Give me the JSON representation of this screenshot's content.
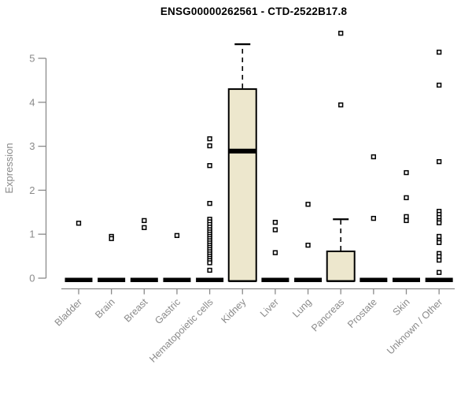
{
  "title": "ENSG00000262561 - CTD-2522B17.8",
  "colors": {
    "background": "#ffffff",
    "box_fill": "#ede7cd",
    "box_stroke": "#000000",
    "median": "#000000",
    "whisker": "#000000",
    "outlier_stroke": "#000000",
    "outlier_fill": "#ffffff",
    "axis": "#8a8a8a",
    "tick_text": "#8a8a8a",
    "title_text": "#000000"
  },
  "chart_data": {
    "type": "boxplot",
    "title": "ENSG00000262561 - CTD-2522B17.8",
    "xlabel": "",
    "ylabel": "Expression",
    "ylim": [
      0,
      5.6
    ],
    "yticks": [
      0,
      1,
      2,
      3,
      4,
      5
    ],
    "grid": false,
    "legend": false,
    "categories": [
      "Bladder",
      "Brain",
      "Breast",
      "Gastric",
      "Hematopoietic cells",
      "Kidney",
      "Liver",
      "Lung",
      "Pancreas",
      "Prostate",
      "Skin",
      "Unknown / Other"
    ],
    "boxes": [
      {
        "category": "Bladder",
        "q1": 0,
        "median": 0,
        "q3": 0,
        "whisker_low": 0,
        "whisker_high": 0,
        "outliers": [
          1.25
        ]
      },
      {
        "category": "Brain",
        "q1": 0,
        "median": 0,
        "q3": 0,
        "whisker_low": 0,
        "whisker_high": 0,
        "outliers": [
          0.95,
          0.9
        ]
      },
      {
        "category": "Breast",
        "q1": 0,
        "median": 0,
        "q3": 0,
        "whisker_low": 0,
        "whisker_high": 0,
        "outliers": [
          1.31,
          1.15
        ]
      },
      {
        "category": "Gastric",
        "q1": 0,
        "median": 0,
        "q3": 0,
        "whisker_low": 0,
        "whisker_high": 0,
        "outliers": [
          0.97
        ]
      },
      {
        "category": "Hematopoietic cells",
        "q1": 0,
        "median": 0,
        "q3": 0,
        "whisker_low": 0,
        "whisker_high": 0,
        "outliers": [
          3.17,
          3.01,
          2.56,
          1.7,
          1.34,
          1.28,
          1.22,
          1.16,
          1.1,
          1.05,
          1.0,
          0.95,
          0.9,
          0.85,
          0.8,
          0.75,
          0.7,
          0.65,
          0.6,
          0.55,
          0.5,
          0.45,
          0.4,
          0.35,
          0.18
        ]
      },
      {
        "category": "Kidney",
        "q1": 0,
        "median": 2.89,
        "q3": 4.3,
        "whisker_low": 0,
        "whisker_high": 5.32,
        "outliers": []
      },
      {
        "category": "Liver",
        "q1": 0,
        "median": 0,
        "q3": 0,
        "whisker_low": 0,
        "whisker_high": 0,
        "outliers": [
          1.27,
          1.1,
          0.58
        ]
      },
      {
        "category": "Lung",
        "q1": 0,
        "median": 0,
        "q3": 0,
        "whisker_low": 0,
        "whisker_high": 0,
        "outliers": [
          1.68,
          0.75
        ]
      },
      {
        "category": "Pancreas",
        "q1": 0,
        "median": 0,
        "q3": 0.61,
        "whisker_low": 0,
        "whisker_high": 1.34,
        "outliers": [
          5.57,
          3.94
        ]
      },
      {
        "category": "Prostate",
        "q1": 0,
        "median": 0,
        "q3": 0,
        "whisker_low": 0,
        "whisker_high": 0,
        "outliers": [
          2.76,
          1.36
        ]
      },
      {
        "category": "Skin",
        "q1": 0,
        "median": 0,
        "q3": 0,
        "whisker_low": 0,
        "whisker_high": 0,
        "outliers": [
          2.4,
          1.83,
          1.4,
          1.31
        ]
      },
      {
        "category": "Unknown / Other",
        "q1": 0,
        "median": 0,
        "q3": 0,
        "whisker_low": 0,
        "whisker_high": 0,
        "outliers": [
          5.14,
          4.39,
          2.65,
          1.52,
          1.45,
          1.38,
          1.31,
          1.26,
          0.95,
          0.86,
          0.81,
          0.56,
          0.49,
          0.41,
          0.13
        ]
      }
    ]
  }
}
